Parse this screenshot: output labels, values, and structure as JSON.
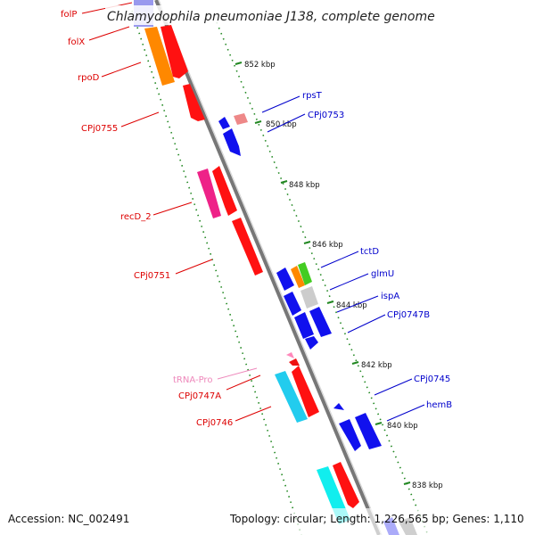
{
  "title": "Chlamydophila pneumoniae J138, complete genome",
  "accession": "Accession: NC_002491",
  "summary": "Topology: circular; Length: 1,226,565 bp; Genes: 1,110",
  "colors": {
    "forward_label": "#dd0000",
    "reverse_label": "#0000cc",
    "trna_label": "#ee88bb",
    "backbone": "#7a7a7a",
    "tick": "#228822"
  },
  "kbp_ticks": [
    "852 kbp",
    "850 kbp",
    "848 kbp",
    "846 kbp",
    "844 kbp",
    "842 kbp",
    "840 kbp",
    "838 kbp"
  ],
  "labels_left": [
    "folP",
    "folX",
    "rpoD",
    "CPj0755",
    "recD_2",
    "CPj0751",
    "tRNA-Pro",
    "CPj0747A",
    "CPj0746"
  ],
  "labels_right": [
    "rpsT",
    "CPj0753",
    "tctD",
    "glmU",
    "ispA",
    "CPj0747B",
    "CPj0745",
    "hemB"
  ]
}
